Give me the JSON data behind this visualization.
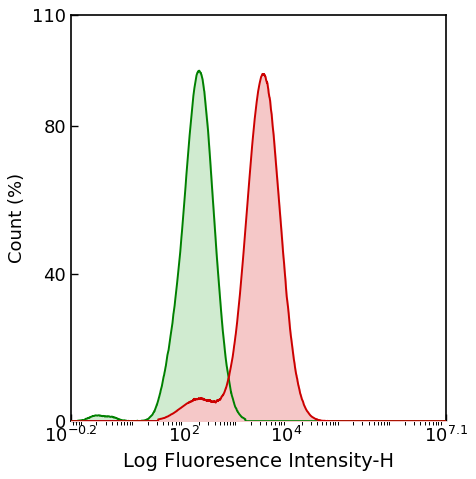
{
  "xlabel": "Log Fluoresence Intensity-H",
  "ylabel": "Count (%)",
  "xlim_log": [
    -0.2,
    7.1
  ],
  "ylim": [
    0,
    110
  ],
  "yticks": [
    0,
    40,
    80,
    110
  ],
  "xtick_positions": [
    -0.2,
    2,
    4,
    7.1
  ],
  "green_peak_log": 2.3,
  "green_peak_y": 95,
  "green_sigma": 0.28,
  "red_peak_log": 3.55,
  "red_peak_y": 94,
  "red_sigma": 0.32,
  "green_color": "#008000",
  "red_color": "#cc0000",
  "green_fill": "#d0ebd0",
  "red_fill": "#f5c8c8",
  "background_color": "#ffffff",
  "linewidth": 1.4,
  "xlabel_fontsize": 14,
  "ylabel_fontsize": 13,
  "tick_fontsize": 13
}
